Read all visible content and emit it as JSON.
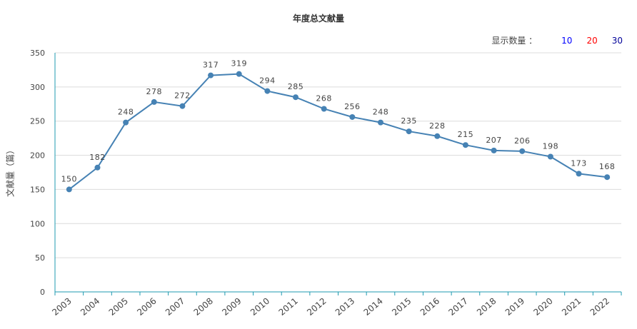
{
  "chart_data": {
    "type": "line",
    "title": "年度总文献量",
    "xlabel": "",
    "ylabel": "文献量（篇）",
    "categories": [
      "2003",
      "2004",
      "2005",
      "2006",
      "2007",
      "2008",
      "2009",
      "2010",
      "2011",
      "2012",
      "2013",
      "2014",
      "2015",
      "2016",
      "2017",
      "2018",
      "2019",
      "2020",
      "2021",
      "2022"
    ],
    "values": [
      150,
      182,
      248,
      278,
      272,
      317,
      319,
      294,
      285,
      268,
      256,
      248,
      235,
      228,
      215,
      207,
      206,
      198,
      173,
      168
    ],
    "ylim": [
      0,
      350
    ],
    "yticks": [
      "0",
      "50",
      "100",
      "150",
      "200",
      "250",
      "300",
      "350"
    ],
    "grid": true,
    "line_color": "#4682b4",
    "axis_color": "#1f9bb0"
  },
  "controls": {
    "label": "显示数量 ：",
    "options": [
      {
        "text": "10",
        "color": "#0000ff"
      },
      {
        "text": "20",
        "color": "#ff0000"
      },
      {
        "text": "30",
        "color": "#000099"
      }
    ]
  }
}
